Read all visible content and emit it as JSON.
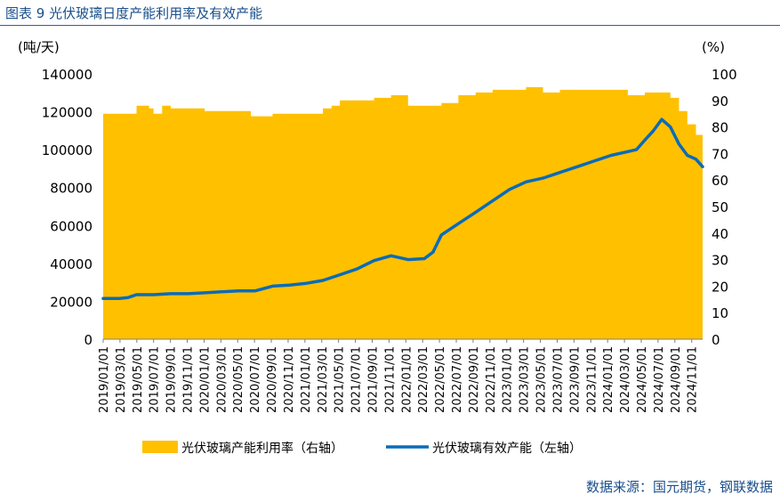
{
  "header": {
    "figure_title": "图表 9 光伏玻璃日度产能利用率及有效产能"
  },
  "footer": {
    "source": "数据来源：国元期货，钢联数据"
  },
  "colors": {
    "area": "#FFC000",
    "line": "#0B6BB8",
    "title": "#1a4f8b"
  },
  "chart_data": {
    "type": "line",
    "title": "图表 9 光伏玻璃日度产能利用率及有效产能",
    "ylabel_left": "(吨/天)",
    "ylabel_right": "(%)",
    "ylim_left": [
      0,
      140000
    ],
    "ylim_right": [
      0,
      100
    ],
    "yticks_left": [
      "0",
      "20000",
      "40000",
      "60000",
      "80000",
      "100000",
      "120000",
      "140000"
    ],
    "yticks_right": [
      "0",
      "10",
      "20",
      "30",
      "40",
      "50",
      "60",
      "70",
      "80",
      "90",
      "100"
    ],
    "xtick_labels": [
      "2019/01/01",
      "2019/03/01",
      "2019/05/01",
      "2019/07/01",
      "2019/09/01",
      "2019/11/01",
      "2020/01/01",
      "2020/03/01",
      "2020/05/01",
      "2020/07/01",
      "2020/09/01",
      "2020/11/01",
      "2021/01/01",
      "2021/03/01",
      "2021/05/01",
      "2021/07/01",
      "2021/09/01",
      "2021/11/01",
      "2022/01/01",
      "2022/03/01",
      "2022/05/01",
      "2022/07/01",
      "2022/09/01",
      "2022/11/01",
      "2023/01/01",
      "2023/03/01",
      "2023/05/01",
      "2023/07/01",
      "2023/09/01",
      "2023/11/01",
      "2024/01/01",
      "2024/03/01",
      "2024/05/01",
      "2024/07/01",
      "2024/09/01",
      "2024/11/01"
    ],
    "series": [
      {
        "name": "光伏玻璃产能利用率（右轴）",
        "type": "area",
        "axis": "right",
        "x": [
          "2019-01-01",
          "2019-03-01",
          "2019-05-01",
          "2019-06-15",
          "2019-07-01",
          "2019-08-01",
          "2019-09-01",
          "2019-11-01",
          "2020-01-01",
          "2020-03-01",
          "2020-05-01",
          "2020-06-15",
          "2020-07-01",
          "2020-09-01",
          "2020-11-01",
          "2021-01-01",
          "2021-03-01",
          "2021-04-01",
          "2021-05-01",
          "2021-06-01",
          "2021-07-01",
          "2021-09-01",
          "2021-11-01",
          "2022-01-01",
          "2022-03-01",
          "2022-05-01",
          "2022-07-01",
          "2022-09-01",
          "2022-11-01",
          "2023-01-01",
          "2023-03-01",
          "2023-05-01",
          "2023-07-01",
          "2023-09-01",
          "2023-11-01",
          "2024-01-01",
          "2024-03-01",
          "2024-05-01",
          "2024-07-01",
          "2024-08-01",
          "2024-09-01",
          "2024-10-01",
          "2024-11-01",
          "2024-11-25"
        ],
        "values": [
          85,
          85,
          88,
          87,
          85,
          88,
          87,
          87,
          86,
          86,
          86,
          84,
          84,
          85,
          85,
          85,
          87,
          88,
          90,
          90,
          90,
          91,
          92,
          88,
          88,
          89,
          92,
          93,
          94,
          94,
          95,
          93,
          94,
          94,
          94,
          94,
          92,
          93,
          93,
          91,
          86,
          81,
          77,
          74
        ]
      },
      {
        "name": "光伏玻璃有效产能（左轴）",
        "type": "line",
        "axis": "left",
        "x": [
          "2019-01-01",
          "2019-03-01",
          "2019-04-01",
          "2019-05-01",
          "2019-07-01",
          "2019-09-01",
          "2019-11-01",
          "2020-01-01",
          "2020-03-01",
          "2020-05-01",
          "2020-07-01",
          "2020-09-01",
          "2020-11-01",
          "2021-01-01",
          "2021-03-01",
          "2021-05-01",
          "2021-07-01",
          "2021-09-01",
          "2021-11-01",
          "2022-01-01",
          "2022-03-01",
          "2022-04-01",
          "2022-05-01",
          "2022-07-01",
          "2022-09-01",
          "2022-11-01",
          "2023-01-01",
          "2023-03-01",
          "2023-05-01",
          "2023-07-01",
          "2023-09-01",
          "2023-11-01",
          "2024-01-01",
          "2024-03-01",
          "2024-04-01",
          "2024-05-01",
          "2024-06-01",
          "2024-07-01",
          "2024-08-01",
          "2024-09-01",
          "2024-10-01",
          "2024-11-01",
          "2024-11-25"
        ],
        "values": [
          21500,
          21500,
          22000,
          23500,
          23500,
          24000,
          24000,
          24500,
          25000,
          25500,
          25500,
          28000,
          28500,
          29500,
          31000,
          34000,
          37000,
          41500,
          44000,
          42000,
          42500,
          46000,
          55000,
          61000,
          67000,
          73000,
          79000,
          83000,
          85000,
          88000,
          91000,
          94000,
          97000,
          99000,
          100000,
          105000,
          110000,
          116000,
          112000,
          103000,
          97000,
          95000,
          91000
        ]
      }
    ]
  }
}
